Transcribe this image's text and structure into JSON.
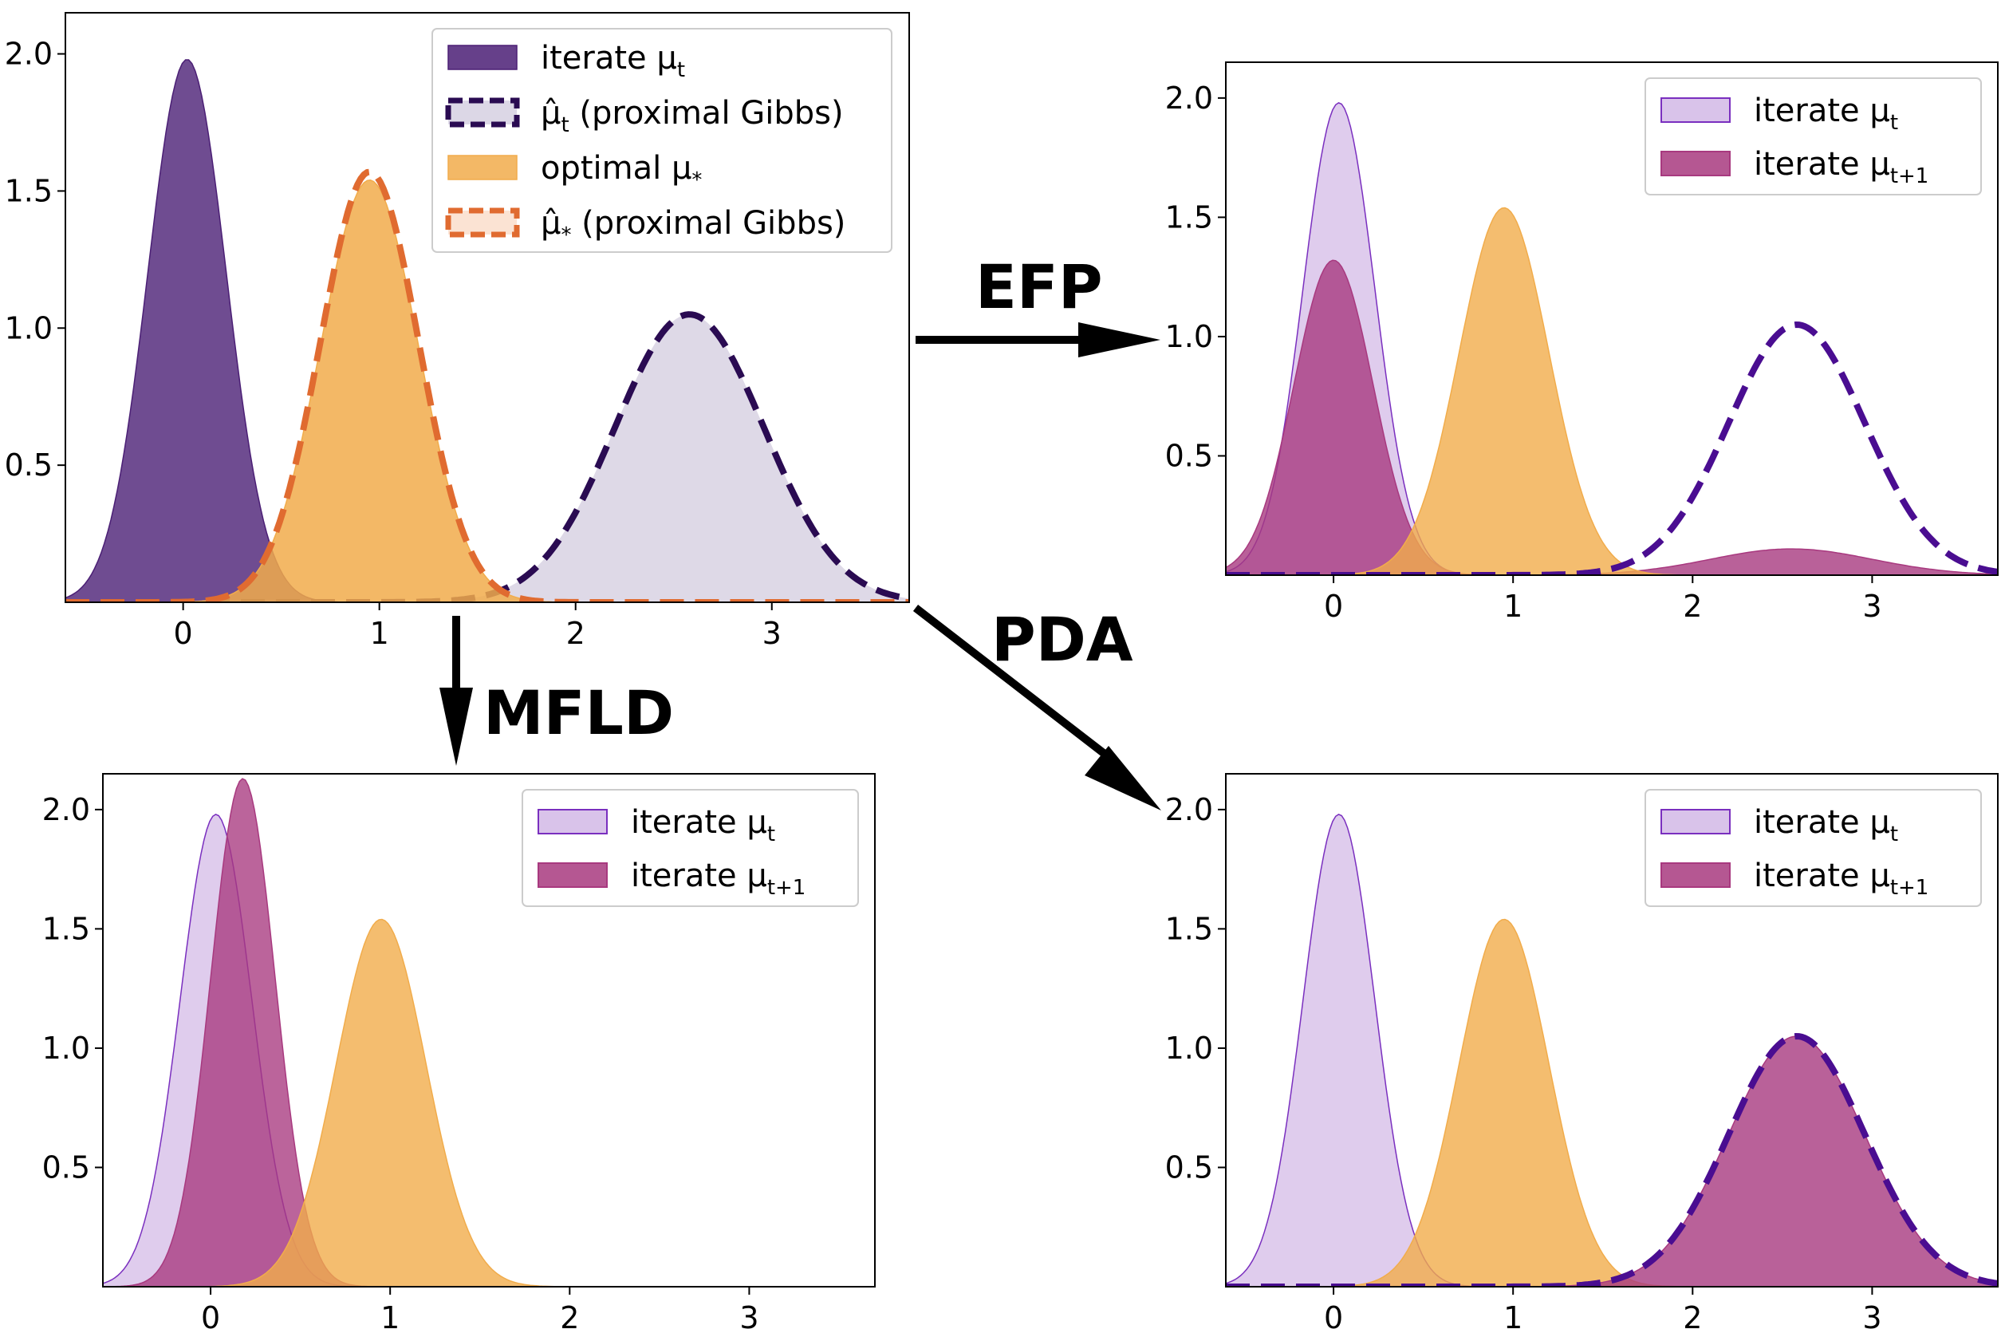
{
  "figure": {
    "arrows": [
      {
        "id": "efp",
        "label": "EFP"
      },
      {
        "id": "mfld",
        "label": "MFLD"
      },
      {
        "id": "pda",
        "label": "PDA"
      }
    ]
  },
  "colors": {
    "dark_purple": "#4b1f75",
    "dashed_purple": "#2a0b52",
    "dashed_purple_bright": "#4a0d91",
    "lavender_fill": "#d9c3ea",
    "lavender_edge": "#7a2fbf",
    "magenta": "#a8397f",
    "orange": "#f1ac4b",
    "orange_dash": "#e06b30",
    "light_gray_purple": "#dcd7e6"
  },
  "chart_data": [
    {
      "id": "top-left",
      "type": "area",
      "xlim": [
        -0.6,
        3.7
      ],
      "ylim": [
        0,
        2.15
      ],
      "x_ticks": [
        "0",
        "1",
        "2",
        "3"
      ],
      "y_ticks": [
        "0.5",
        "1.0",
        "1.5",
        "2.0"
      ],
      "legend": [
        {
          "label": "iterate μ",
          "sub": "t",
          "style": "dark-fill"
        },
        {
          "label": "μ̂",
          "sub": "t",
          "suffix": " (proximal Gibbs)",
          "style": "gray-dashed-purple"
        },
        {
          "label": "optimal μ",
          "sub": "*",
          "style": "orange-fill"
        },
        {
          "label": "μ̂",
          "sub": "*",
          "suffix": " (proximal Gibbs)",
          "style": "pale-dashed-orange"
        }
      ],
      "series": [
        {
          "name": "iterate μt",
          "center": 0.02,
          "sd": 0.2,
          "peak": 1.98
        },
        {
          "name": "μ̂t (proximal Gibbs)",
          "center": 2.58,
          "sd": 0.38,
          "peak": 1.05
        },
        {
          "name": "optimal μ*",
          "center": 0.95,
          "sd": 0.25,
          "peak": 1.54
        },
        {
          "name": "μ̂* (proximal Gibbs)",
          "center": 0.95,
          "sd": 0.25,
          "peak": 1.57
        }
      ]
    },
    {
      "id": "top-right",
      "type": "area",
      "xlim": [
        -0.6,
        3.7
      ],
      "ylim": [
        0,
        2.15
      ],
      "x_ticks": [
        "0",
        "1",
        "2",
        "3"
      ],
      "y_ticks": [
        "0.5",
        "1.0",
        "1.5",
        "2.0"
      ],
      "legend": [
        {
          "label": "iterate μ",
          "sub": "t",
          "style": "lavender"
        },
        {
          "label": "iterate μ",
          "sub": "t+1",
          "style": "magenta"
        }
      ],
      "series": [
        {
          "name": "iterate μt",
          "center": 0.03,
          "sd": 0.2,
          "peak": 1.98
        },
        {
          "name": "iterate μt+1",
          "center": 0.0,
          "sd": 0.22,
          "peak": 1.32,
          "second_bump": {
            "center": 2.55,
            "sd": 0.45,
            "peak": 0.11
          }
        },
        {
          "name": "optimal μ*",
          "center": 0.95,
          "sd": 0.25,
          "peak": 1.54
        },
        {
          "name": "μ̂t (proximal Gibbs)",
          "center": 2.58,
          "sd": 0.38,
          "peak": 1.05
        }
      ]
    },
    {
      "id": "bottom-left",
      "type": "area",
      "xlim": [
        -0.6,
        3.7
      ],
      "ylim": [
        0,
        2.15
      ],
      "x_ticks": [
        "0",
        "1",
        "2",
        "3"
      ],
      "y_ticks": [
        "0.5",
        "1.0",
        "1.5",
        "2.0"
      ],
      "legend": [
        {
          "label": "iterate μ",
          "sub": "t",
          "style": "lavender"
        },
        {
          "label": "iterate μ",
          "sub": "t+1",
          "style": "magenta"
        }
      ],
      "series": [
        {
          "name": "iterate μt",
          "center": 0.03,
          "sd": 0.2,
          "peak": 1.98
        },
        {
          "name": "iterate μt+1",
          "center": 0.18,
          "sd": 0.18,
          "peak": 2.13
        },
        {
          "name": "optimal μ*",
          "center": 0.95,
          "sd": 0.25,
          "peak": 1.54
        }
      ]
    },
    {
      "id": "bottom-right",
      "type": "area",
      "xlim": [
        -0.6,
        3.7
      ],
      "ylim": [
        0,
        2.15
      ],
      "x_ticks": [
        "0",
        "1",
        "2",
        "3"
      ],
      "y_ticks": [
        "0.5",
        "1.0",
        "1.5",
        "2.0"
      ],
      "legend": [
        {
          "label": "iterate μ",
          "sub": "t",
          "style": "lavender"
        },
        {
          "label": "iterate μ",
          "sub": "t+1",
          "style": "magenta"
        }
      ],
      "series": [
        {
          "name": "iterate μt",
          "center": 0.03,
          "sd": 0.2,
          "peak": 1.98
        },
        {
          "name": "optimal μ*",
          "center": 0.95,
          "sd": 0.25,
          "peak": 1.54
        },
        {
          "name": "iterate μt+1",
          "center": 2.58,
          "sd": 0.38,
          "peak": 1.05
        },
        {
          "name": "μ̂t (proximal Gibbs)",
          "center": 2.58,
          "sd": 0.38,
          "peak": 1.05
        }
      ]
    }
  ]
}
